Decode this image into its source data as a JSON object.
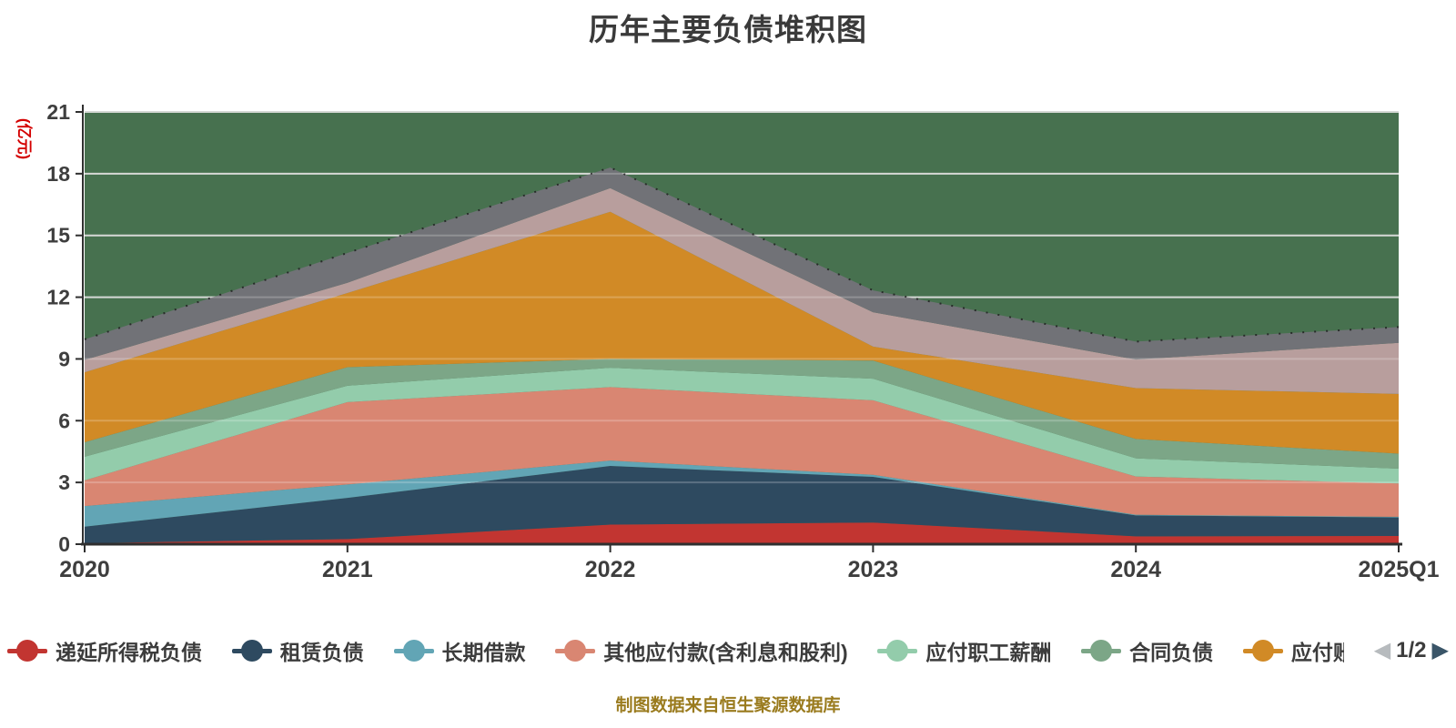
{
  "title": "历年主要负债堆积图",
  "y_axis_name": "(亿元)",
  "caption": "制图数据来自恒生聚源数据库",
  "legend": {
    "page_indicator": "1/2",
    "items": [
      {
        "label": "递延所得税负债",
        "color": "#c23531",
        "truncated": false
      },
      {
        "label": "租赁负债",
        "color": "#2e4a60",
        "truncated": false
      },
      {
        "label": "长期借款",
        "color": "#62a5b5",
        "truncated": false
      },
      {
        "label": "其他应付款(含利息和股利)",
        "color": "#d98672",
        "truncated": false
      },
      {
        "label": "应付职工薪酬",
        "color": "#93ccab",
        "truncated": false
      },
      {
        "label": "合同负债",
        "color": "#7ca687",
        "truncated": false
      },
      {
        "label": "应付账款",
        "color": "#d18a26",
        "truncated": true
      }
    ]
  },
  "chart_data": {
    "type": "area",
    "stacked": true,
    "title": "历年主要负债堆积图",
    "ylabel": "(亿元)",
    "ylim": [
      0,
      21
    ],
    "ytick_interval": 3,
    "yticks": [
      0,
      3,
      6,
      9,
      12,
      15,
      18,
      21
    ],
    "grid": true,
    "legend_position": "bottom",
    "plot_background": "#47714f",
    "categories": [
      "2020",
      "2021",
      "2022",
      "2023",
      "2024",
      "2025Q1"
    ],
    "series": [
      {
        "name": "递延所得税负债",
        "color": "#c23531",
        "legend_page": 1,
        "values": [
          0.05,
          0.25,
          0.95,
          1.05,
          0.38,
          0.4
        ]
      },
      {
        "name": "租赁负债",
        "color": "#2e4a60",
        "legend_page": 1,
        "values": [
          0.8,
          2.0,
          2.85,
          2.22,
          1.02,
          0.9
        ]
      },
      {
        "name": "长期借款",
        "color": "#62a5b5",
        "legend_page": 1,
        "values": [
          1.0,
          0.65,
          0.26,
          0.1,
          0.03,
          0.03
        ]
      },
      {
        "name": "其他应付款(含利息和股利)",
        "color": "#d98672",
        "legend_page": 1,
        "values": [
          1.25,
          4.0,
          3.57,
          3.62,
          1.86,
          1.62
        ]
      },
      {
        "name": "应付职工薪酬",
        "color": "#93ccab",
        "legend_page": 1,
        "values": [
          1.15,
          0.8,
          0.94,
          1.05,
          0.88,
          0.72
        ]
      },
      {
        "name": "合同负债",
        "color": "#7ca687",
        "legend_page": 1,
        "values": [
          0.7,
          0.9,
          0.43,
          0.88,
          0.94,
          0.73
        ]
      },
      {
        "name": "应付账款",
        "color": "#d18a26",
        "legend_page": 1,
        "values": [
          3.4,
          3.6,
          7.15,
          0.68,
          2.47,
          2.9
        ]
      },
      {
        "name": "",
        "color": "#b89e9d",
        "legend_page": 2,
        "values": [
          0.6,
          0.5,
          1.15,
          1.67,
          1.39,
          2.48
        ]
      },
      {
        "name": "",
        "color": "#717277",
        "legend_page": 2,
        "values": [
          1.0,
          1.45,
          1.0,
          1.06,
          0.87,
          0.77
        ]
      }
    ]
  },
  "colors": {
    "page_background": "#ffffff",
    "plot_background": "#47714f",
    "gridline": "#c9cec9",
    "axis_line": "#2f2f2f",
    "axis_label": "#3e3e3e",
    "title_text": "#3a3a3a",
    "y_axis_name_text": "#d40000",
    "caption_text": "#9a7b1e",
    "pager_prev": "#b7bbbe",
    "pager_next": "#3a5568"
  }
}
